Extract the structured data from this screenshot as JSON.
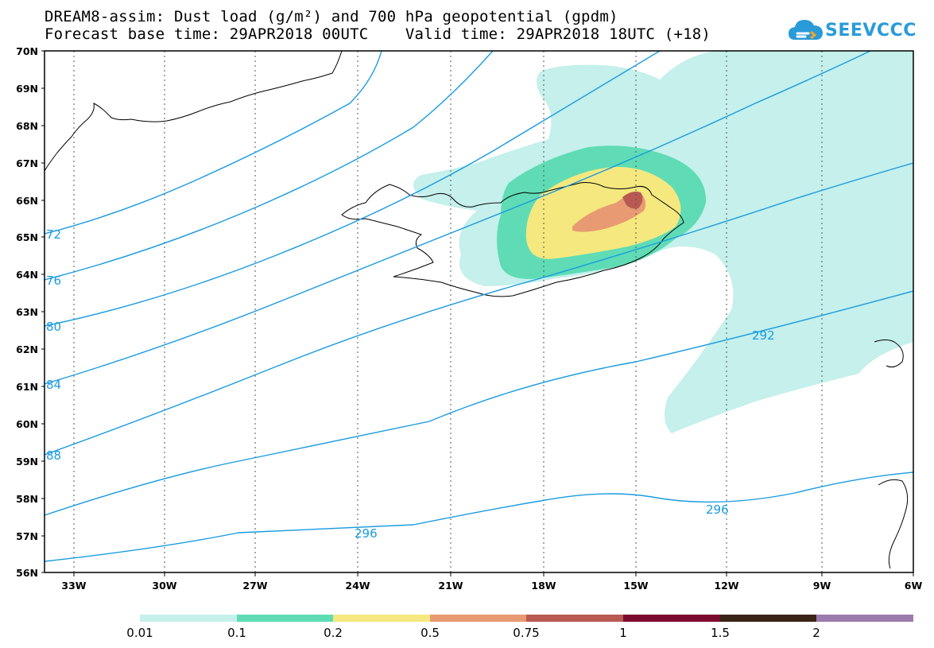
{
  "header": {
    "title_line1": "DREAM8-assim: Dust load (g/m²) and 700 hPa geopotential (gpdm)",
    "title_line2": "Forecast base time: 29APR2018 00UTC    Valid time: 29APR2018 18UTC (+18)",
    "logo_text": "SEEVCCC"
  },
  "map": {
    "lat_labels": [
      "70N",
      "69N",
      "68N",
      "67N",
      "66N",
      "65N",
      "64N",
      "63N",
      "62N",
      "61N",
      "60N",
      "59N",
      "58N",
      "57N",
      "56N"
    ],
    "lon_labels": [
      "33W",
      "30W",
      "27W",
      "24W",
      "21W",
      "18W",
      "15W",
      "12W",
      "9W",
      "6W"
    ],
    "contour_labels": [
      "72",
      "76",
      "80",
      "84",
      "88",
      "292",
      "296",
      "296"
    ],
    "contour_color": "#1a9be0"
  },
  "colorbar": {
    "colors": [
      "#c5f0eb",
      "#5fdcb5",
      "#f5e87e",
      "#e89a72",
      "#b85a52",
      "#7c0a2e",
      "#3a2416",
      "#9b7aac"
    ],
    "tick_labels": [
      "0.01",
      "0.1",
      "0.2",
      "0.5",
      "0.75",
      "1",
      "1.5",
      "2"
    ]
  }
}
